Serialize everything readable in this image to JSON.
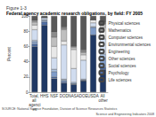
{
  "chart_data": {
    "type": "bar",
    "title": "Figure 1-3",
    "subtitle": "Federal agency academic research obligations, by field: FY 2005",
    "y_label": "Percent",
    "source": "SOURCE: National Science Foundation, Division of Science Resources Statistics",
    "footer": "Science and Engineering Indicators 2008",
    "categories": [
      "Total, all agencies",
      "HHS",
      "NSF",
      "DOD",
      "NASA",
      "DOE",
      "USDA",
      "All other"
    ],
    "series": [
      {
        "name": "Life sciences",
        "color": "#1f3864",
        "values": [
          60,
          88,
          18,
          12,
          10,
          15,
          75,
          30
        ]
      },
      {
        "name": "Psychology",
        "color": "#4f6fa8",
        "values": [
          3,
          4,
          2,
          2,
          1,
          0,
          0,
          3
        ]
      },
      {
        "name": "Social sciences",
        "color": "#7f9cc9",
        "values": [
          3,
          2,
          7,
          2,
          0,
          1,
          10,
          12
        ]
      },
      {
        "name": "Other sciences",
        "color": "#a9c0e0",
        "values": [
          2,
          1,
          3,
          1,
          2,
          1,
          1,
          5
        ]
      },
      {
        "name": "Engineering",
        "color": "#d0dcef",
        "values": [
          14,
          3,
          15,
          45,
          18,
          25,
          5,
          20
        ]
      },
      {
        "name": "Environmental sciences",
        "color": "#e8e8e8",
        "values": [
          6,
          0,
          15,
          5,
          25,
          7,
          4,
          15
        ]
      },
      {
        "name": "Computer sciences",
        "color": "#bfbfbf",
        "values": [
          4,
          0,
          12,
          15,
          3,
          3,
          0,
          4
        ]
      },
      {
        "name": "Mathematics",
        "color": "#8c8c8c",
        "values": [
          2,
          0,
          7,
          3,
          1,
          3,
          0,
          2
        ]
      },
      {
        "name": "Physical sciences",
        "color": "#595959",
        "values": [
          6,
          2,
          21,
          15,
          40,
          45,
          5,
          9
        ]
      }
    ],
    "stacked": true,
    "ylim": [
      0,
      100
    ],
    "yticks": [
      0,
      20,
      40,
      60,
      80,
      100
    ],
    "grid": false,
    "legend": "right"
  }
}
